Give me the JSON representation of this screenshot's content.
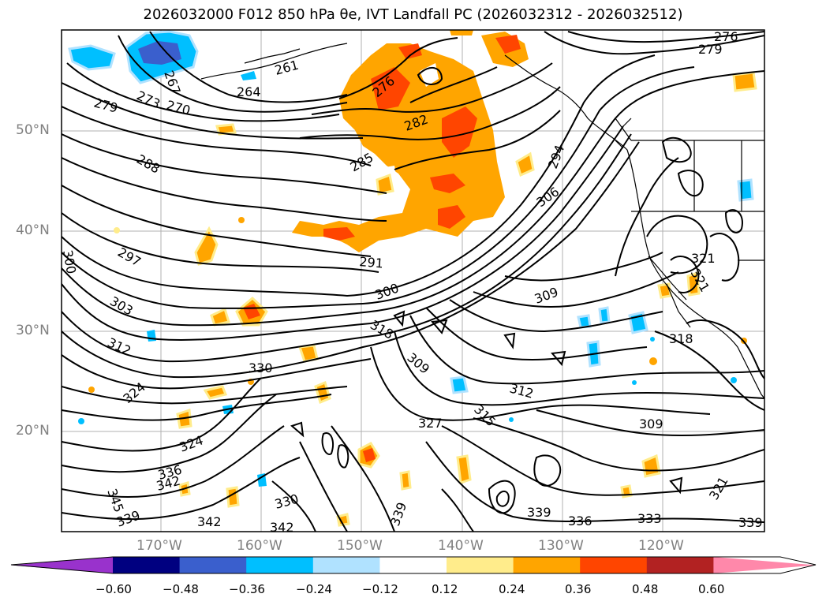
{
  "title": "2026032000 F012 850 hPa θe, IVT Landfall PC (2026032312 - 2026032512)",
  "lat_labels": [
    "50°N",
    "40°N",
    "30°N",
    "20°N"
  ],
  "lon_labels": [
    "170°W",
    "160°W",
    "150°W",
    "140°W",
    "130°W",
    "120°W"
  ],
  "colorbar": {
    "ticks": [
      "−0.60",
      "−0.48",
      "−0.36",
      "−0.24",
      "−0.12",
      "0.12",
      "0.24",
      "0.36",
      "0.48",
      "0.60"
    ],
    "colors": [
      "#9932CC",
      "#000080",
      "#3A5FCD",
      "#00BFFF",
      "#B0E2FF",
      "#FFFFFF",
      "#FFEC8B",
      "#FFA500",
      "#FF4500",
      "#B22222",
      "#FF88AA"
    ]
  },
  "contour_labels": [
    "267",
    "273",
    "270",
    "264",
    "261",
    "276",
    "279",
    "282",
    "285",
    "288",
    "294",
    "297",
    "300",
    "303",
    "306",
    "309",
    "312",
    "315",
    "318",
    "321",
    "324",
    "327",
    "330",
    "333",
    "336",
    "339",
    "342",
    "345"
  ]
}
